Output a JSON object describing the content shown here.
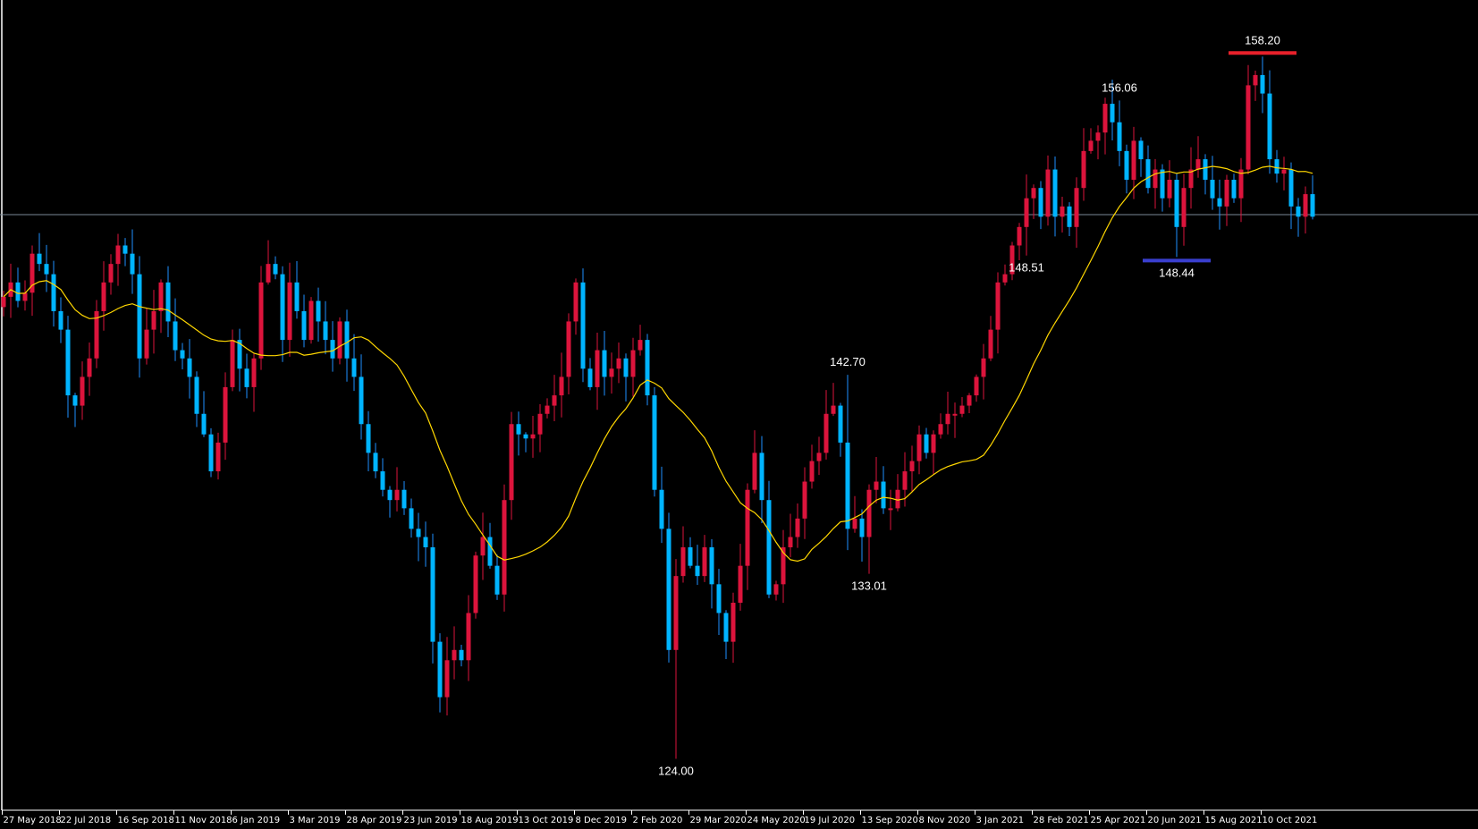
{
  "chart_data": {
    "type": "candlestick",
    "interval": "weekly",
    "colors": {
      "up": "#DC143C",
      "down": "#00B4FF",
      "down_wick": "#1E90FF",
      "ma": "#FFD700",
      "hline": "#7A8896",
      "high_marker": "#E8202A",
      "low_marker": "#3A3FCF",
      "background": "#000000",
      "axis": "#FFFFFF"
    },
    "ylim": [
      121.5,
      160.9
    ],
    "first_open": 146.0,
    "close": [
      146.5,
      147.2,
      146.3,
      146.7,
      148.6,
      148.1,
      147.6,
      145.8,
      144.9,
      141.7,
      141.2,
      142.6,
      143.5,
      145.8,
      147.2,
      148.1,
      149.0,
      148.6,
      147.6,
      143.5,
      144.9,
      145.8,
      147.2,
      145.3,
      143.9,
      143.5,
      142.6,
      140.8,
      139.8,
      138.0,
      139.4,
      142.1,
      144.4,
      143.0,
      142.1,
      143.5,
      147.2,
      148.1,
      147.6,
      144.4,
      147.2,
      145.8,
      144.4,
      146.3,
      145.3,
      144.4,
      143.5,
      145.3,
      143.5,
      142.6,
      140.3,
      138.9,
      138.0,
      137.1,
      136.6,
      137.1,
      136.2,
      135.2,
      134.8,
      134.3,
      129.7,
      127.0,
      128.8,
      129.3,
      128.8,
      131.1,
      133.9,
      134.8,
      133.4,
      132.0,
      136.6,
      140.3,
      139.8,
      139.6,
      139.8,
      140.8,
      141.2,
      141.7,
      142.6,
      145.3,
      147.2,
      143.0,
      142.1,
      143.9,
      142.6,
      143.0,
      143.5,
      142.6,
      143.9,
      144.4,
      141.7,
      137.1,
      135.2,
      129.3,
      132.9,
      134.3,
      133.4,
      132.9,
      134.3,
      132.5,
      131.1,
      129.7,
      131.6,
      133.4,
      137.1,
      138.9,
      136.6,
      132.0,
      132.5,
      134.3,
      134.8,
      135.7,
      137.5,
      138.5,
      138.9,
      140.8,
      141.2,
      139.4,
      135.2,
      135.7,
      134.8,
      137.1,
      137.5,
      136.2,
      136.2,
      137.1,
      138.0,
      138.5,
      139.8,
      138.9,
      139.8,
      140.3,
      140.8,
      140.8,
      141.2,
      141.7,
      142.6,
      143.5,
      144.9,
      147.2,
      147.6,
      149.0,
      149.9,
      151.3,
      151.8,
      150.4,
      152.7,
      150.4,
      150.9,
      149.9,
      151.8,
      153.6,
      154.1,
      154.5,
      155.9,
      155.0,
      153.6,
      152.2,
      154.1,
      153.2,
      151.8,
      152.7,
      151.3,
      152.2,
      149.9,
      151.8,
      152.7,
      153.2,
      152.2,
      151.3,
      150.9,
      152.2,
      151.3,
      152.7,
      156.8,
      157.3,
      156.4,
      153.2,
      152.5,
      152.7,
      150.9,
      150.4,
      151.5,
      150.4
    ],
    "ma_period": 20,
    "hline_price": 150.5,
    "annotations": [
      {
        "label": "158.20",
        "candle": 176,
        "kind": "high",
        "value": 158.2,
        "marker": "high_marker"
      },
      {
        "label": "156.06",
        "candle": 156,
        "kind": "high",
        "value": 156.06
      },
      {
        "label": "148.51",
        "candle": 143,
        "kind": "low",
        "value": 148.51
      },
      {
        "label": "148.44",
        "candle": 164,
        "kind": "low",
        "value": 148.44,
        "marker": "low_marker"
      },
      {
        "label": "142.70",
        "candle": 118,
        "kind": "high",
        "value": 142.7
      },
      {
        "label": "133.01",
        "candle": 121,
        "kind": "low",
        "value": 133.01
      },
      {
        "label": "124.00",
        "candle": 94,
        "kind": "low",
        "value": 124.0
      }
    ],
    "x_tick_every": 8,
    "x_tick_labels": [
      "27 May 2018",
      "22 Jul 2018",
      "16 Sep 2018",
      "11 Nov 2018",
      "6 Jan 2019",
      "3 Mar 2019",
      "28 Apr 2019",
      "23 Jun 2019",
      "18 Aug 2019",
      "13 Oct 2019",
      "8 Dec 2019",
      "2 Feb 2020",
      "29 Mar 2020",
      "24 May 2020",
      "19 Jul 2020",
      "13 Sep 2020",
      "8 Nov 2020",
      "3 Jan 2021",
      "28 Feb 2021",
      "25 Apr 2021",
      "20 Jun 2021",
      "15 Aug 2021",
      "10 Oct 2021"
    ]
  }
}
